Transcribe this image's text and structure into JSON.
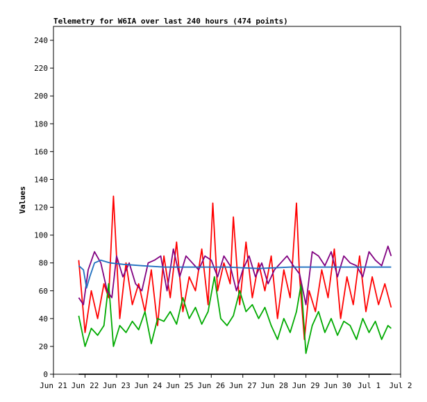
{
  "chart_data": {
    "type": "line",
    "title": "Telemetry for W6IA over last 240 hours (474 points)",
    "xlabel": "",
    "ylabel": "Values",
    "xlim": [
      "Jun 21",
      "Jul 2"
    ],
    "ylim": [
      0,
      250
    ],
    "x_tick_labels": [
      "Jun 21",
      "Jun 22",
      "Jun 23",
      "Jun 24",
      "Jun 25",
      "Jun 26",
      "Jun 27",
      "Jun 28",
      "Jun 29",
      "Jun 30",
      "Jul 1",
      "Jul 2"
    ],
    "y_tick_labels": [
      "0",
      "20",
      "40",
      "60",
      "80",
      "100",
      "120",
      "140",
      "160",
      "180",
      "200",
      "220",
      "240"
    ],
    "y_ticks": [
      0,
      20,
      40,
      60,
      80,
      100,
      120,
      140,
      160,
      180,
      200,
      220,
      240
    ],
    "grid": false,
    "legend": "none",
    "series": [
      {
        "color": "#ff0000",
        "x": [
          "Jun 21.8",
          "Jun 22.0",
          "Jun 22.2",
          "Jun 22.4",
          "Jun 22.6",
          "Jun 22.75",
          "Jun 22.9",
          "Jun 23.1",
          "Jun 23.3",
          "Jun 23.5",
          "Jun 23.7",
          "Jun 23.9",
          "Jun 24.1",
          "Jun 24.3",
          "Jun 24.5",
          "Jun 24.7",
          "Jun 24.9",
          "Jun 25.1",
          "Jun 25.3",
          "Jun 25.5",
          "Jun 25.7",
          "Jun 25.9",
          "Jun 26.05",
          "Jun 26.2",
          "Jun 26.4",
          "Jun 26.6",
          "Jun 26.7",
          "Jun 26.9",
          "Jun 27.1",
          "Jun 27.3",
          "Jun 27.5",
          "Jun 27.7",
          "Jun 27.9",
          "Jun 28.1",
          "Jun 28.3",
          "Jun 28.5",
          "Jun 28.7",
          "Jun 28.8",
          "Jun 28.95",
          "Jun 29.1",
          "Jun 29.3",
          "Jun 29.5",
          "Jun 29.7",
          "Jun 29.9",
          "Jun 30.1",
          "Jun 30.3",
          "Jun 30.5",
          "Jun 30.7",
          "Jun 30.9",
          "Jul 1.1",
          "Jul 1.3",
          "Jul 1.5",
          "Jul 1.7"
        ],
        "y": [
          82,
          30,
          60,
          40,
          65,
          55,
          128,
          40,
          80,
          50,
          65,
          45,
          75,
          35,
          85,
          55,
          95,
          45,
          70,
          60,
          90,
          50,
          123,
          60,
          80,
          65,
          113,
          50,
          95,
          55,
          80,
          60,
          85,
          40,
          75,
          55,
          123,
          70,
          25,
          60,
          45,
          75,
          55,
          90,
          40,
          70,
          50,
          85,
          45,
          70,
          50,
          65,
          48
        ]
      },
      {
        "color": "#00aa00",
        "x": [
          "Jun 21.8",
          "Jun 22.0",
          "Jun 22.2",
          "Jun 22.4",
          "Jun 22.6",
          "Jun 22.75",
          "Jun 22.9",
          "Jun 23.1",
          "Jun 23.3",
          "Jun 23.5",
          "Jun 23.7",
          "Jun 23.9",
          "Jun 24.1",
          "Jun 24.3",
          "Jun 24.5",
          "Jun 24.7",
          "Jun 24.9",
          "Jun 25.1",
          "Jun 25.3",
          "Jun 25.5",
          "Jun 25.7",
          "Jun 25.9",
          "Jun 26.1",
          "Jun 26.3",
          "Jun 26.5",
          "Jun 26.7",
          "Jun 26.9",
          "Jun 27.1",
          "Jun 27.3",
          "Jun 27.5",
          "Jun 27.7",
          "Jun 27.9",
          "Jun 28.1",
          "Jun 28.3",
          "Jun 28.5",
          "Jun 28.7",
          "Jun 28.85",
          "Jun 29.0",
          "Jun 29.2",
          "Jun 29.4",
          "Jun 29.6",
          "Jun 29.8",
          "Jun 30.0",
          "Jun 30.2",
          "Jun 30.4",
          "Jun 30.6",
          "Jun 30.8",
          "Jul 1.0",
          "Jul 1.2",
          "Jul 1.4",
          "Jul 1.6",
          "Jul 1.7"
        ],
        "y": [
          42,
          20,
          33,
          28,
          35,
          65,
          20,
          35,
          30,
          38,
          32,
          45,
          22,
          40,
          38,
          45,
          36,
          55,
          40,
          48,
          36,
          45,
          70,
          40,
          35,
          42,
          60,
          45,
          50,
          40,
          48,
          35,
          25,
          40,
          30,
          45,
          65,
          15,
          35,
          45,
          30,
          40,
          28,
          38,
          35,
          25,
          40,
          30,
          38,
          25,
          35,
          33
        ]
      },
      {
        "color": "#800080",
        "x": [
          "Jun 21.8",
          "Jun 21.95",
          "Jun 22.1",
          "Jun 22.3",
          "Jun 22.5",
          "Jun 22.7",
          "Jun 22.85",
          "Jun 23.0",
          "Jun 23.2",
          "Jun 23.4",
          "Jun 23.6",
          "Jun 23.8",
          "Jun 24.0",
          "Jun 24.2",
          "Jun 24.4",
          "Jun 24.6",
          "Jun 24.8",
          "Jun 25.0",
          "Jun 25.2",
          "Jun 25.4",
          "Jun 25.6",
          "Jun 25.8",
          "Jun 26.0",
          "Jun 26.2",
          "Jun 26.4",
          "Jun 26.6",
          "Jun 26.8",
          "Jun 27.0",
          "Jun 27.2",
          "Jun 27.4",
          "Jun 27.6",
          "Jun 27.8",
          "Jun 28.0",
          "Jun 28.2",
          "Jun 28.4",
          "Jun 28.6",
          "Jun 28.8",
          "Jun 29.0",
          "Jun 29.2",
          "Jun 29.4",
          "Jun 29.6",
          "Jun 29.8",
          "Jun 30.0",
          "Jun 30.2",
          "Jun 30.4",
          "Jun 30.6",
          "Jun 30.8",
          "Jul 1.0",
          "Jul 1.2",
          "Jul 1.4",
          "Jul 1.6",
          "Jul 1.7"
        ],
        "y": [
          55,
          50,
          75,
          88,
          80,
          60,
          55,
          85,
          70,
          80,
          65,
          60,
          80,
          82,
          85,
          60,
          90,
          70,
          85,
          80,
          75,
          85,
          82,
          70,
          85,
          78,
          60,
          75,
          85,
          70,
          80,
          65,
          75,
          80,
          85,
          78,
          72,
          50,
          88,
          85,
          78,
          88,
          70,
          85,
          80,
          78,
          70,
          88,
          82,
          78,
          92,
          85
        ]
      },
      {
        "color": "#1f6fc0",
        "x": [
          "Jun 21.8",
          "Jun 21.95",
          "Jun 22.05",
          "Jun 22.15",
          "Jun 22.3",
          "Jun 22.5",
          "Jun 22.8",
          "Jun 23.2",
          "Jun 23.8",
          "Jun 24.5",
          "Jun 25.5",
          "Jun 26.5",
          "Jun 27.5",
          "Jun 28.5",
          "Jun 29.5",
          "Jun 30.5",
          "Jul 1.0",
          "Jul 1.7"
        ],
        "y": [
          78,
          75,
          62,
          70,
          80,
          82,
          80,
          79,
          78,
          77,
          77,
          77,
          76,
          77,
          77,
          77,
          77,
          77
        ]
      },
      {
        "color": "#000000",
        "x": [
          "Jun 21.8",
          "Jul 1.7"
        ],
        "y": [
          0,
          0
        ]
      }
    ]
  }
}
